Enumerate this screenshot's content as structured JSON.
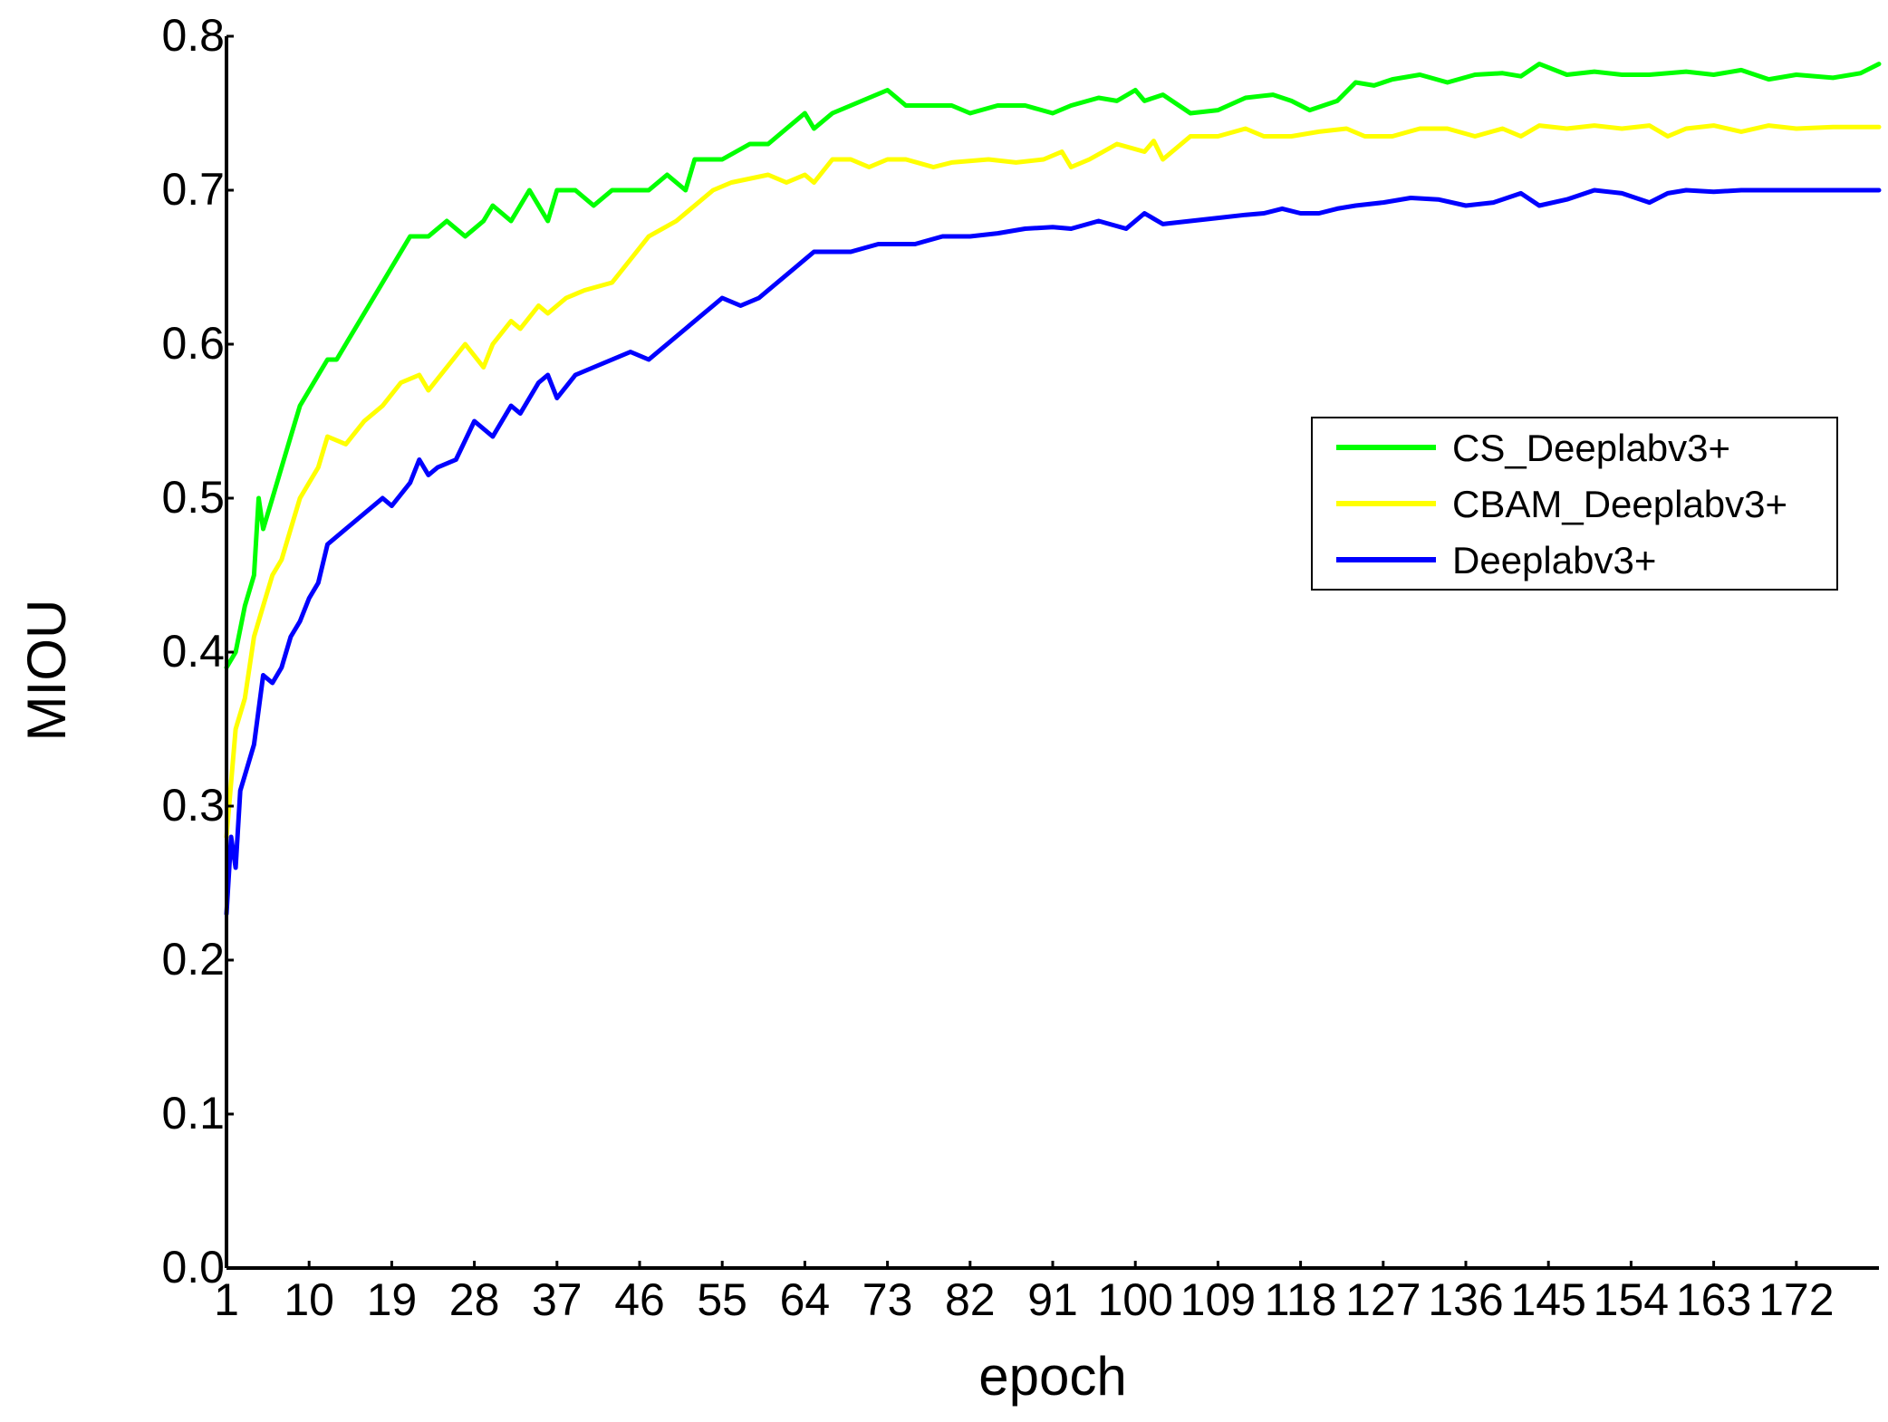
{
  "chart_data": {
    "type": "line",
    "title": "",
    "xlabel": "epoch",
    "ylabel": "MIOU",
    "ylim": [
      0,
      0.8
    ],
    "xlim": [
      1,
      181
    ],
    "yticks": [
      "0.0",
      "0.1",
      "0.2",
      "0.3",
      "0.4",
      "0.5",
      "0.6",
      "0.7",
      "0.8"
    ],
    "xticks": [
      "1",
      "10",
      "19",
      "28",
      "37",
      "46",
      "55",
      "64",
      "73",
      "82",
      "91",
      "100",
      "109",
      "118",
      "127",
      "136",
      "145",
      "154",
      "163",
      "172"
    ],
    "grid": false,
    "legend_position": "right",
    "series": [
      {
        "name": "CS_Deeplabv3+",
        "color": "#00ff00",
        "points": [
          [
            1,
            0.39
          ],
          [
            2,
            0.4
          ],
          [
            3,
            0.43
          ],
          [
            4,
            0.45
          ],
          [
            4.5,
            0.5
          ],
          [
            5,
            0.48
          ],
          [
            6,
            0.5
          ],
          [
            7,
            0.52
          ],
          [
            8,
            0.54
          ],
          [
            9,
            0.56
          ],
          [
            10,
            0.57
          ],
          [
            11,
            0.58
          ],
          [
            12,
            0.59
          ],
          [
            13,
            0.59
          ],
          [
            14,
            0.6
          ],
          [
            16,
            0.62
          ],
          [
            18,
            0.64
          ],
          [
            19,
            0.65
          ],
          [
            21,
            0.67
          ],
          [
            23,
            0.67
          ],
          [
            25,
            0.68
          ],
          [
            27,
            0.67
          ],
          [
            29,
            0.68
          ],
          [
            30,
            0.69
          ],
          [
            32,
            0.68
          ],
          [
            34,
            0.7
          ],
          [
            36,
            0.68
          ],
          [
            37,
            0.7
          ],
          [
            39,
            0.7
          ],
          [
            41,
            0.69
          ],
          [
            43,
            0.7
          ],
          [
            45,
            0.7
          ],
          [
            47,
            0.7
          ],
          [
            49,
            0.71
          ],
          [
            51,
            0.7
          ],
          [
            52,
            0.72
          ],
          [
            55,
            0.72
          ],
          [
            58,
            0.73
          ],
          [
            60,
            0.73
          ],
          [
            62,
            0.74
          ],
          [
            64,
            0.75
          ],
          [
            65,
            0.74
          ],
          [
            67,
            0.75
          ],
          [
            69,
            0.755
          ],
          [
            71,
            0.76
          ],
          [
            73,
            0.765
          ],
          [
            75,
            0.755
          ],
          [
            78,
            0.755
          ],
          [
            80,
            0.755
          ],
          [
            82,
            0.75
          ],
          [
            85,
            0.755
          ],
          [
            88,
            0.755
          ],
          [
            91,
            0.75
          ],
          [
            93,
            0.755
          ],
          [
            96,
            0.76
          ],
          [
            98,
            0.758
          ],
          [
            100,
            0.765
          ],
          [
            101,
            0.758
          ],
          [
            103,
            0.762
          ],
          [
            106,
            0.75
          ],
          [
            109,
            0.752
          ],
          [
            112,
            0.76
          ],
          [
            115,
            0.762
          ],
          [
            117,
            0.758
          ],
          [
            119,
            0.752
          ],
          [
            122,
            0.758
          ],
          [
            124,
            0.77
          ],
          [
            126,
            0.768
          ],
          [
            128,
            0.772
          ],
          [
            131,
            0.775
          ],
          [
            134,
            0.77
          ],
          [
            137,
            0.775
          ],
          [
            140,
            0.776
          ],
          [
            142,
            0.774
          ],
          [
            144,
            0.782
          ],
          [
            147,
            0.775
          ],
          [
            150,
            0.777
          ],
          [
            153,
            0.775
          ],
          [
            156,
            0.775
          ],
          [
            160,
            0.777
          ],
          [
            163,
            0.775
          ],
          [
            166,
            0.778
          ],
          [
            169,
            0.772
          ],
          [
            172,
            0.775
          ],
          [
            176,
            0.773
          ],
          [
            179,
            0.776
          ],
          [
            181,
            0.782
          ]
        ]
      },
      {
        "name": "CBAM_Deeplabv3+",
        "color": "#ffff00",
        "points": [
          [
            1,
            0.28
          ],
          [
            2,
            0.35
          ],
          [
            3,
            0.37
          ],
          [
            4,
            0.41
          ],
          [
            5,
            0.43
          ],
          [
            6,
            0.45
          ],
          [
            7,
            0.46
          ],
          [
            8,
            0.48
          ],
          [
            9,
            0.5
          ],
          [
            10,
            0.51
          ],
          [
            11,
            0.52
          ],
          [
            12,
            0.54
          ],
          [
            14,
            0.535
          ],
          [
            16,
            0.55
          ],
          [
            18,
            0.56
          ],
          [
            20,
            0.575
          ],
          [
            22,
            0.58
          ],
          [
            23,
            0.57
          ],
          [
            25,
            0.585
          ],
          [
            27,
            0.6
          ],
          [
            29,
            0.585
          ],
          [
            30,
            0.6
          ],
          [
            32,
            0.615
          ],
          [
            33,
            0.61
          ],
          [
            35,
            0.625
          ],
          [
            36,
            0.62
          ],
          [
            38,
            0.63
          ],
          [
            40,
            0.635
          ],
          [
            43,
            0.64
          ],
          [
            45,
            0.655
          ],
          [
            47,
            0.67
          ],
          [
            50,
            0.68
          ],
          [
            52,
            0.69
          ],
          [
            54,
            0.7
          ],
          [
            56,
            0.705
          ],
          [
            60,
            0.71
          ],
          [
            62,
            0.705
          ],
          [
            64,
            0.71
          ],
          [
            65,
            0.705
          ],
          [
            67,
            0.72
          ],
          [
            69,
            0.72
          ],
          [
            71,
            0.715
          ],
          [
            73,
            0.72
          ],
          [
            75,
            0.72
          ],
          [
            78,
            0.715
          ],
          [
            80,
            0.718
          ],
          [
            84,
            0.72
          ],
          [
            87,
            0.718
          ],
          [
            90,
            0.72
          ],
          [
            92,
            0.725
          ],
          [
            93,
            0.715
          ],
          [
            95,
            0.72
          ],
          [
            98,
            0.73
          ],
          [
            101,
            0.725
          ],
          [
            102,
            0.732
          ],
          [
            103,
            0.72
          ],
          [
            106,
            0.735
          ],
          [
            109,
            0.735
          ],
          [
            112,
            0.74
          ],
          [
            114,
            0.735
          ],
          [
            117,
            0.735
          ],
          [
            120,
            0.738
          ],
          [
            123,
            0.74
          ],
          [
            125,
            0.735
          ],
          [
            128,
            0.735
          ],
          [
            131,
            0.74
          ],
          [
            134,
            0.74
          ],
          [
            137,
            0.735
          ],
          [
            140,
            0.74
          ],
          [
            142,
            0.735
          ],
          [
            144,
            0.742
          ],
          [
            147,
            0.74
          ],
          [
            150,
            0.742
          ],
          [
            153,
            0.74
          ],
          [
            156,
            0.742
          ],
          [
            158,
            0.735
          ],
          [
            160,
            0.74
          ],
          [
            163,
            0.742
          ],
          [
            166,
            0.738
          ],
          [
            169,
            0.742
          ],
          [
            172,
            0.74
          ],
          [
            176,
            0.741
          ],
          [
            181,
            0.741
          ]
        ]
      },
      {
        "name": "Deeplabv3+",
        "color": "#0000ff",
        "points": [
          [
            1,
            0.23
          ],
          [
            1.5,
            0.28
          ],
          [
            2,
            0.26
          ],
          [
            2.5,
            0.31
          ],
          [
            3,
            0.32
          ],
          [
            4,
            0.34
          ],
          [
            5,
            0.385
          ],
          [
            6,
            0.38
          ],
          [
            7,
            0.39
          ],
          [
            8,
            0.41
          ],
          [
            9,
            0.42
          ],
          [
            10,
            0.435
          ],
          [
            11,
            0.445
          ],
          [
            12,
            0.47
          ],
          [
            14,
            0.48
          ],
          [
            16,
            0.49
          ],
          [
            18,
            0.5
          ],
          [
            19,
            0.495
          ],
          [
            21,
            0.51
          ],
          [
            22,
            0.525
          ],
          [
            23,
            0.515
          ],
          [
            24,
            0.52
          ],
          [
            26,
            0.525
          ],
          [
            28,
            0.55
          ],
          [
            30,
            0.54
          ],
          [
            32,
            0.56
          ],
          [
            33,
            0.555
          ],
          [
            35,
            0.575
          ],
          [
            36,
            0.58
          ],
          [
            37,
            0.565
          ],
          [
            39,
            0.58
          ],
          [
            41,
            0.585
          ],
          [
            43,
            0.59
          ],
          [
            45,
            0.595
          ],
          [
            47,
            0.59
          ],
          [
            49,
            0.6
          ],
          [
            51,
            0.61
          ],
          [
            53,
            0.62
          ],
          [
            54,
            0.625
          ],
          [
            55,
            0.63
          ],
          [
            57,
            0.625
          ],
          [
            59,
            0.63
          ],
          [
            61,
            0.64
          ],
          [
            63,
            0.65
          ],
          [
            65,
            0.66
          ],
          [
            67,
            0.66
          ],
          [
            69,
            0.66
          ],
          [
            72,
            0.665
          ],
          [
            74,
            0.665
          ],
          [
            76,
            0.665
          ],
          [
            79,
            0.67
          ],
          [
            82,
            0.67
          ],
          [
            85,
            0.672
          ],
          [
            88,
            0.675
          ],
          [
            91,
            0.676
          ],
          [
            93,
            0.675
          ],
          [
            96,
            0.68
          ],
          [
            99,
            0.675
          ],
          [
            101,
            0.685
          ],
          [
            103,
            0.678
          ],
          [
            106,
            0.68
          ],
          [
            109,
            0.682
          ],
          [
            112,
            0.684
          ],
          [
            114,
            0.685
          ],
          [
            116,
            0.688
          ],
          [
            118,
            0.685
          ],
          [
            120,
            0.685
          ],
          [
            122,
            0.688
          ],
          [
            124,
            0.69
          ],
          [
            127,
            0.692
          ],
          [
            130,
            0.695
          ],
          [
            133,
            0.694
          ],
          [
            136,
            0.69
          ],
          [
            139,
            0.692
          ],
          [
            142,
            0.698
          ],
          [
            144,
            0.69
          ],
          [
            147,
            0.694
          ],
          [
            150,
            0.7
          ],
          [
            153,
            0.698
          ],
          [
            156,
            0.692
          ],
          [
            158,
            0.698
          ],
          [
            160,
            0.7
          ],
          [
            163,
            0.699
          ],
          [
            166,
            0.7
          ],
          [
            170,
            0.7
          ],
          [
            176,
            0.7
          ],
          [
            181,
            0.7
          ]
        ]
      }
    ]
  }
}
